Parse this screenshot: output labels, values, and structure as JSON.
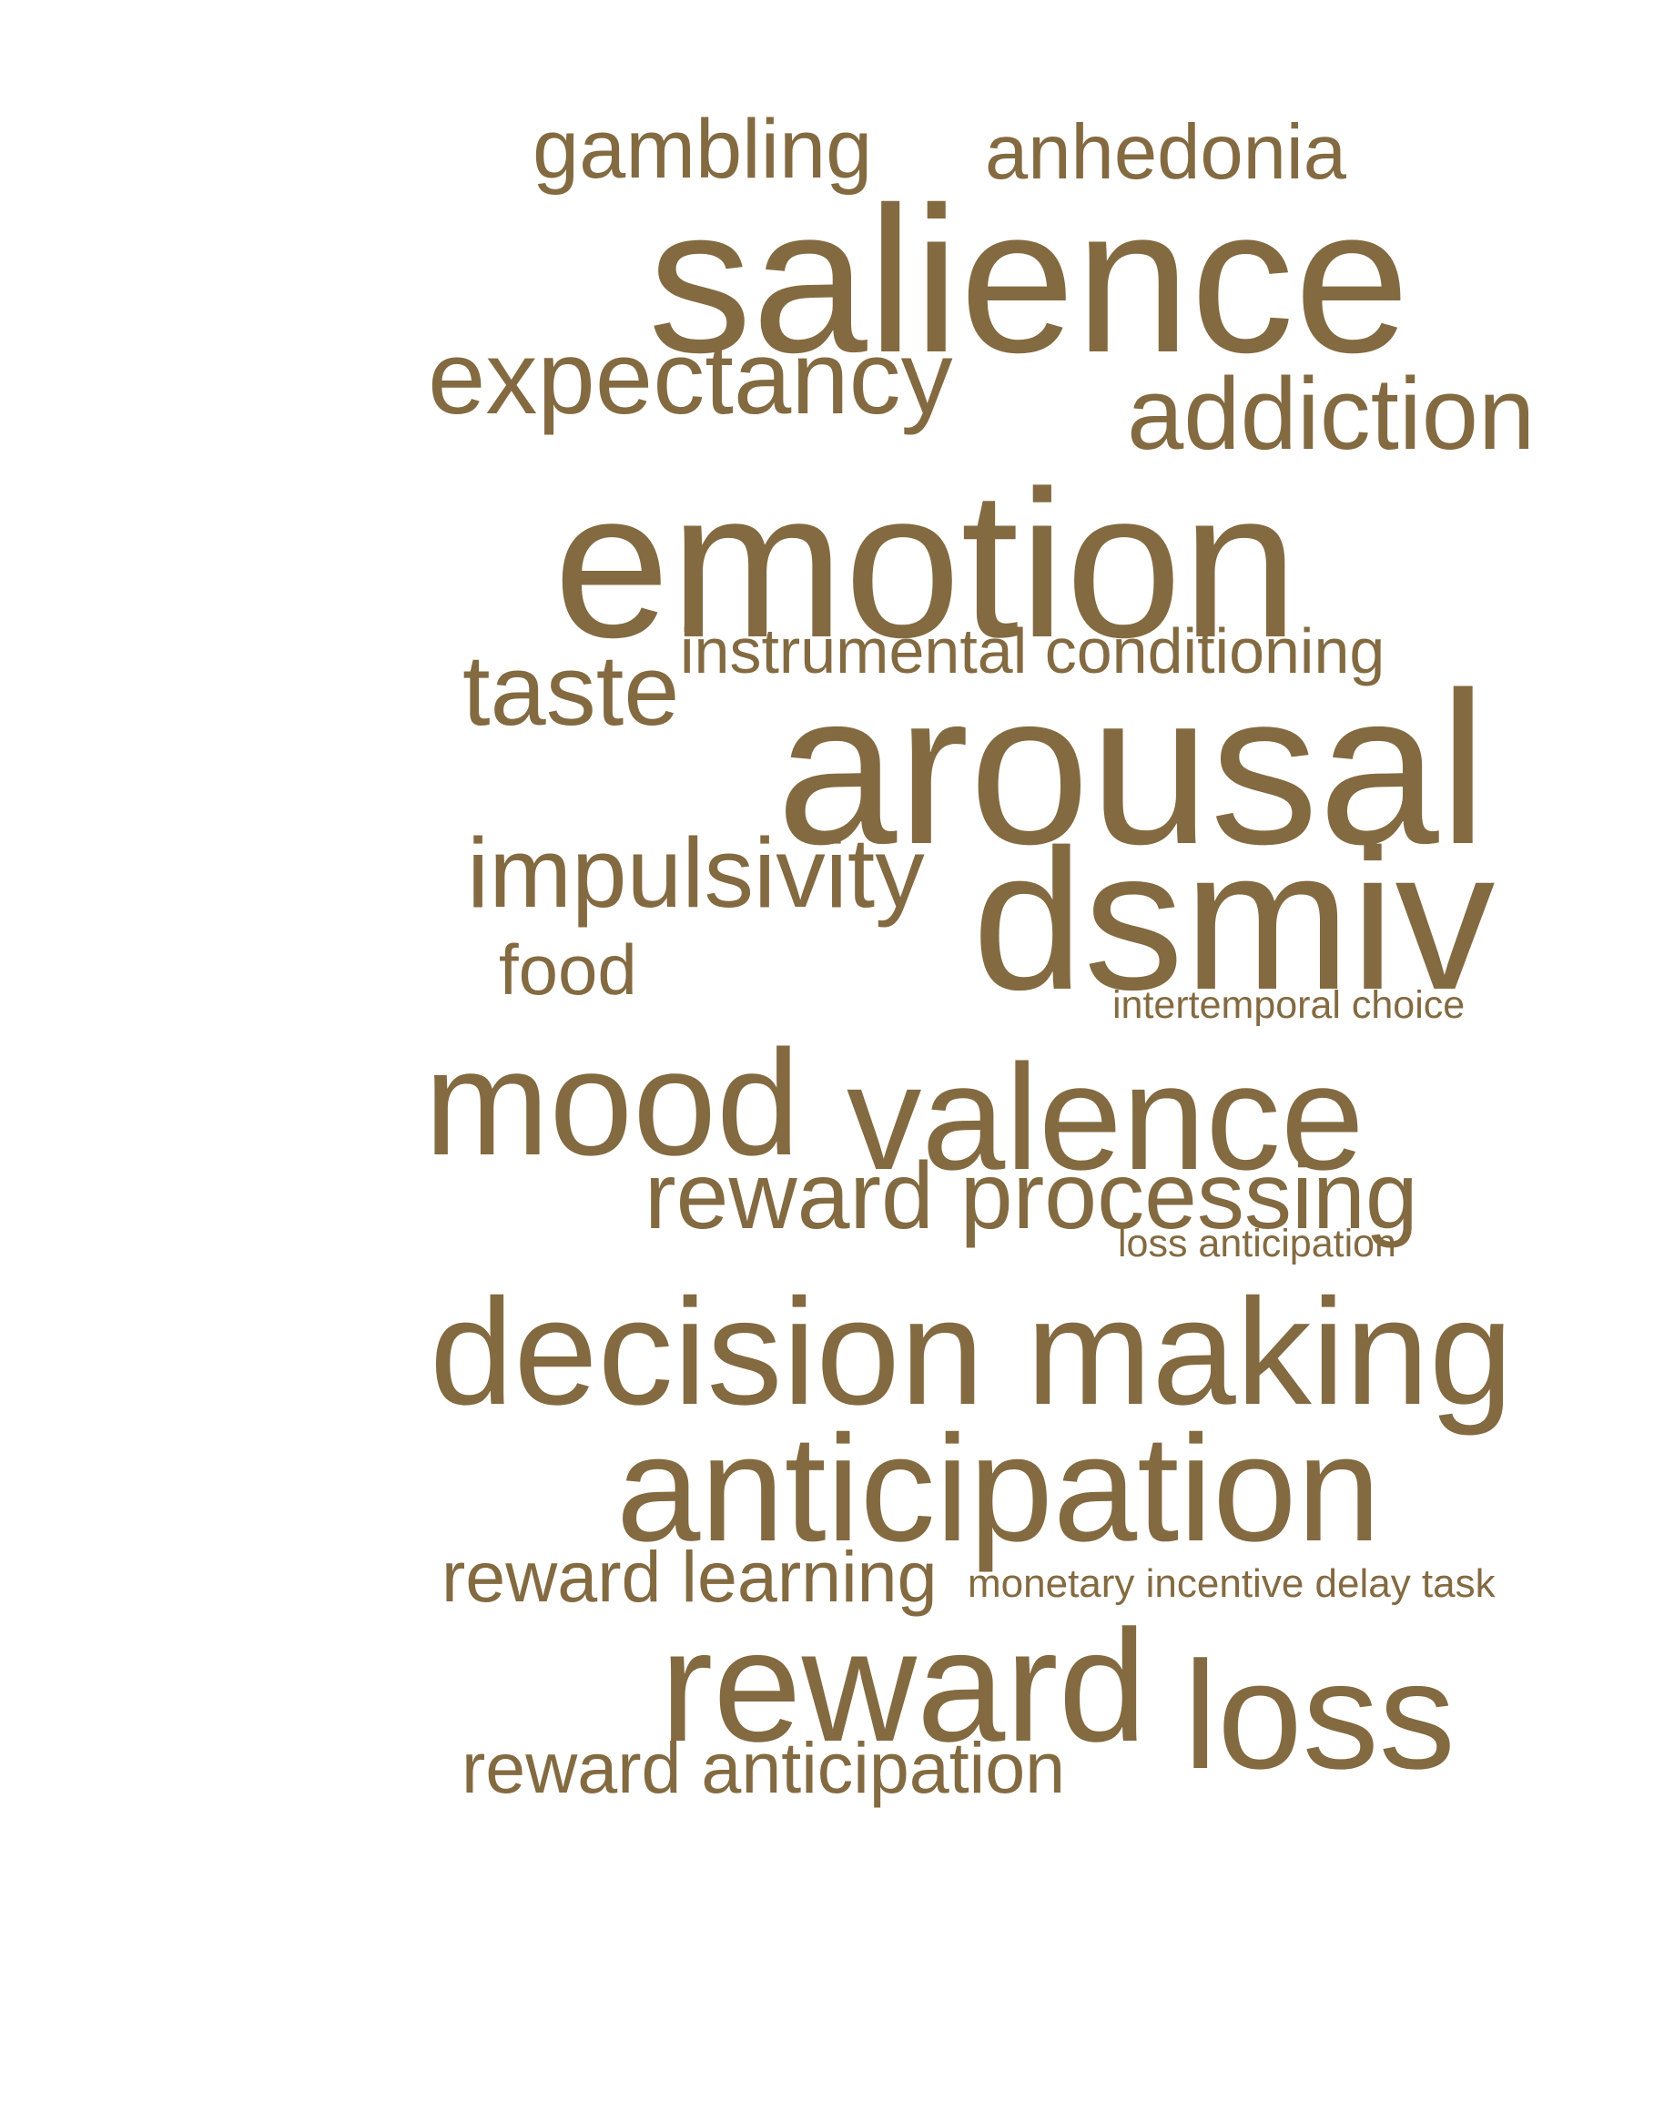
{
  "word_color": "#836a41",
  "background_color": "#ffffff",
  "words": [
    {
      "id": "gambling",
      "text": "gambling"
    },
    {
      "id": "anhedonia",
      "text": "anhedonia"
    },
    {
      "id": "salience",
      "text": "salience"
    },
    {
      "id": "expectancy",
      "text": "expectancy"
    },
    {
      "id": "addiction",
      "text": "addiction"
    },
    {
      "id": "emotion",
      "text": "emotion"
    },
    {
      "id": "instrumental-conditioning",
      "text": "instrumental conditioning"
    },
    {
      "id": "taste",
      "text": "taste"
    },
    {
      "id": "arousal",
      "text": "arousal"
    },
    {
      "id": "impulsivity",
      "text": "impulsivity"
    },
    {
      "id": "dsmiv",
      "text": "dsmiv"
    },
    {
      "id": "food",
      "text": "food"
    },
    {
      "id": "intertemporal-choice",
      "text": "intertemporal choice"
    },
    {
      "id": "mood",
      "text": "mood"
    },
    {
      "id": "valence",
      "text": "valence"
    },
    {
      "id": "reward-processing",
      "text": "reward processing"
    },
    {
      "id": "loss-anticipation",
      "text": "loss anticipation"
    },
    {
      "id": "decision-making",
      "text": "decision making"
    },
    {
      "id": "anticipation",
      "text": "anticipation"
    },
    {
      "id": "reward-learning",
      "text": "reward learning"
    },
    {
      "id": "monetary-incentive-delay-task",
      "text": "monetary incentive delay task"
    },
    {
      "id": "reward",
      "text": "reward"
    },
    {
      "id": "loss",
      "text": "loss"
    },
    {
      "id": "reward-anticipation",
      "text": "reward anticipation"
    }
  ]
}
